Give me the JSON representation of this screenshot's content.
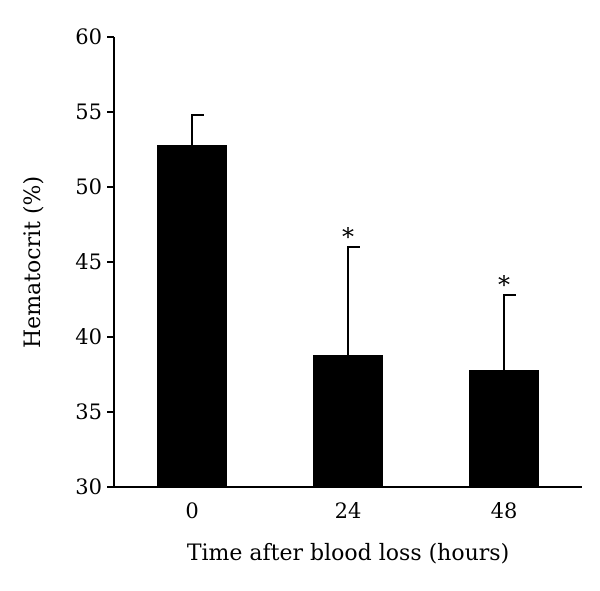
{
  "chart_data": {
    "type": "bar",
    "categories": [
      "0",
      "24",
      "48"
    ],
    "values": [
      52.8,
      38.8,
      37.8
    ],
    "error_upper": [
      54.8,
      46.0,
      42.8
    ],
    "annotations": [
      "",
      "*",
      "*"
    ],
    "xlabel": "Time after blood loss (hours)",
    "ylabel": "Hematocrit (%)",
    "ylim": [
      30,
      60
    ],
    "yticks": [
      30,
      35,
      40,
      45,
      50,
      55,
      60
    ],
    "bar_color": "#000000",
    "grid": false,
    "legend": "none"
  }
}
